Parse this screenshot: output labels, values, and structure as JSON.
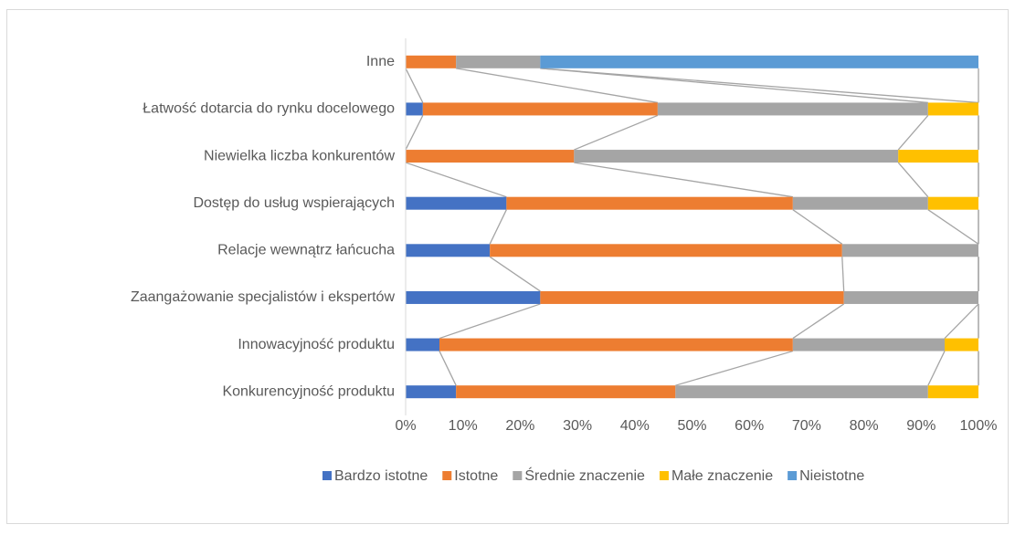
{
  "chart_data": {
    "type": "stacked_barh",
    "categories": [
      "Inne",
      "Łatwość dotarcia do rynku docelowego",
      "Niewielka liczba konkurentów",
      "Dostęp do usług wspierających",
      "Relacje wewnątrz łańcucha",
      "Zaangażowanie specjalistów i ekspertów",
      "Innowacyjność produktu",
      "Konkurencyjność produktu"
    ],
    "series": [
      {
        "name": "Bardzo istotne",
        "color": "#4472c4",
        "values": [
          0,
          3.0,
          0,
          17.6,
          14.7,
          23.5,
          5.9,
          8.8
        ]
      },
      {
        "name": "Istotne",
        "color": "#ed7d31",
        "values": [
          8.8,
          41.0,
          29.4,
          50.0,
          61.5,
          53.0,
          61.7,
          38.3
        ]
      },
      {
        "name": "Średnie znaczenie",
        "color": "#a5a5a5",
        "values": [
          14.7,
          47.2,
          56.6,
          23.6,
          23.8,
          23.5,
          26.5,
          44.1
        ]
      },
      {
        "name": "Małe znaczenie",
        "color": "#ffc000",
        "values": [
          0,
          8.8,
          14.0,
          8.8,
          0,
          0,
          5.9,
          8.8
        ]
      },
      {
        "name": "Nieistotne",
        "color": "#5b9bd5",
        "values": [
          76.5,
          0,
          0,
          0,
          0,
          0,
          0,
          0
        ]
      }
    ],
    "xlim": [
      0,
      100
    ],
    "xticks": [
      {
        "value": 0,
        "label": "0%"
      },
      {
        "value": 10,
        "label": "10%"
      },
      {
        "value": 20,
        "label": "20%"
      },
      {
        "value": 30,
        "label": "30%"
      },
      {
        "value": 40,
        "label": "40%"
      },
      {
        "value": 50,
        "label": "50%"
      },
      {
        "value": 60,
        "label": "60%"
      },
      {
        "value": 70,
        "label": "70%"
      },
      {
        "value": 80,
        "label": "80%"
      },
      {
        "value": 90,
        "label": "90%"
      },
      {
        "value": 100,
        "label": "100%"
      }
    ],
    "series_lines": true,
    "legend": "bottom"
  }
}
